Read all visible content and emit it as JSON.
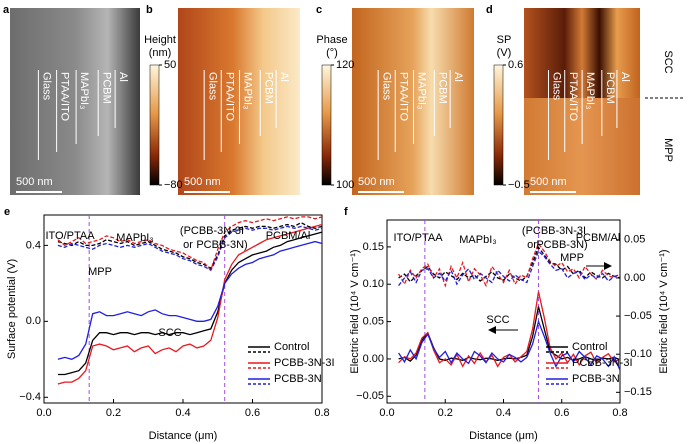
{
  "panels": [
    {
      "letter": "a",
      "layers": [
        "Glass",
        "PTAA/ITO",
        "MAPbI₃",
        "PCBM",
        "Al"
      ],
      "scale": "500 nm"
    },
    {
      "letter": "b",
      "layers": [
        "Glass",
        "PTAA/ITO",
        "MAPbI₃",
        "PCBM",
        "Al"
      ],
      "scale": "500 nm",
      "colorbar": {
        "title_lines": [
          "Height",
          "(nm)"
        ],
        "ticks": [
          50,
          {
            "value": -80,
            "label": "−80"
          }
        ]
      }
    },
    {
      "letter": "c",
      "layers": [
        "Glass",
        "PTAA/ITO",
        "MAPbI₃",
        "PCBM",
        "Al"
      ],
      "scale": "500 nm",
      "colorbar": {
        "title_lines": [
          "Phase",
          "(°)"
        ],
        "ticks": [
          120,
          100
        ]
      }
    },
    {
      "letter": "d",
      "layers": [
        "Glass",
        "PTAA/ITO",
        "MAPbI₃",
        "PCBM",
        "Al"
      ],
      "scale": "500 nm",
      "colorbar": {
        "title_lines": [
          "SP",
          "(V)"
        ],
        "ticks": [
          0.6,
          {
            "value": -0.5,
            "label": "−0.5"
          }
        ]
      },
      "states": [
        "SCC",
        "MPP"
      ]
    }
  ],
  "chart_data": [
    {
      "type": "line",
      "letter": "e",
      "xlabel": "Distance (μm)",
      "ylabel": "Surface potential (V)",
      "xlim": [
        0,
        0.8
      ],
      "xticks": [
        {
          "value": 0,
          "label": "0.0"
        },
        0.2,
        0.4,
        0.6,
        0.8
      ],
      "ylim": [
        -0.43,
        0.56
      ],
      "yticks": [
        {
          "value": -0.4,
          "label": "−0.4"
        },
        {
          "value": 0,
          "label": "0.0"
        },
        0.4
      ],
      "vlines": [
        0.13,
        0.52
      ],
      "annotations": [
        "ITO/PTAA",
        "MAPbI₃",
        "(PCBB-3N-3I",
        "or",
        "PCBB-3N)",
        "PCBM/Al",
        "MPP",
        "SCC"
      ],
      "x": [
        0.04,
        0.06,
        0.08,
        0.1,
        0.12,
        0.14,
        0.16,
        0.18,
        0.2,
        0.22,
        0.24,
        0.26,
        0.28,
        0.3,
        0.32,
        0.34,
        0.36,
        0.38,
        0.4,
        0.42,
        0.44,
        0.46,
        0.48,
        0.5,
        0.52,
        0.54,
        0.56,
        0.58,
        0.6,
        0.62,
        0.64,
        0.66,
        0.68,
        0.7,
        0.72,
        0.74,
        0.76,
        0.78,
        0.8
      ],
      "series": [
        {
          "name": "Control",
          "color": "#000000",
          "values": [
            -0.28,
            -0.28,
            -0.27,
            -0.26,
            -0.22,
            -0.1,
            -0.06,
            -0.06,
            -0.07,
            -0.06,
            -0.06,
            -0.07,
            -0.06,
            -0.06,
            -0.07,
            -0.06,
            -0.07,
            -0.06,
            -0.06,
            -0.07,
            -0.06,
            -0.05,
            -0.04,
            0.05,
            0.2,
            0.27,
            0.31,
            0.33,
            0.35,
            0.36,
            0.37,
            0.39,
            0.4,
            0.42,
            0.43,
            0.44,
            0.45,
            0.46,
            0.47
          ]
        },
        {
          "name": "PCBB-3N-3I",
          "color": "#e8191f",
          "values": [
            -0.33,
            -0.32,
            -0.32,
            -0.3,
            -0.26,
            -0.13,
            -0.12,
            -0.13,
            -0.15,
            -0.14,
            -0.13,
            -0.16,
            -0.14,
            -0.13,
            -0.17,
            -0.15,
            -0.14,
            -0.16,
            -0.13,
            -0.12,
            -0.14,
            -0.13,
            -0.1,
            0.02,
            0.22,
            0.3,
            0.35,
            0.37,
            0.39,
            0.41,
            0.43,
            0.44,
            0.45,
            0.46,
            0.47,
            0.48,
            0.49,
            0.5,
            0.51
          ]
        },
        {
          "name": "PCBB-3N",
          "color": "#1f1fe0",
          "values": [
            -0.2,
            -0.19,
            -0.2,
            -0.18,
            -0.12,
            0.04,
            0.05,
            0.03,
            0.03,
            0.04,
            0.05,
            0.04,
            0.03,
            0.05,
            0.06,
            0.04,
            0.03,
            0.03,
            0.02,
            0.01,
            0.0,
            0.0,
            0.01,
            0.08,
            0.2,
            0.25,
            0.28,
            0.3,
            0.31,
            0.33,
            0.34,
            0.35,
            0.37,
            0.38,
            0.39,
            0.4,
            0.41,
            0.42,
            0.41
          ]
        },
        {
          "color": "#000000",
          "dashed": true,
          "values": [
            0.42,
            0.41,
            0.4,
            0.42,
            0.4,
            0.4,
            0.41,
            0.43,
            0.42,
            0.41,
            0.42,
            0.4,
            0.41,
            0.42,
            0.4,
            0.38,
            0.37,
            0.36,
            0.34,
            0.33,
            0.31,
            0.3,
            0.28,
            0.35,
            0.45,
            0.48,
            0.49,
            0.5,
            0.49,
            0.5,
            0.5,
            0.49,
            0.5,
            0.51,
            0.5,
            0.52,
            0.5,
            0.49,
            0.5
          ]
        },
        {
          "color": "#e8191f",
          "dashed": true,
          "values": [
            0.43,
            0.4,
            0.42,
            0.44,
            0.41,
            0.42,
            0.43,
            0.45,
            0.44,
            0.42,
            0.43,
            0.41,
            0.42,
            0.43,
            0.41,
            0.4,
            0.38,
            0.37,
            0.36,
            0.34,
            0.32,
            0.31,
            0.27,
            0.38,
            0.47,
            0.5,
            0.52,
            0.53,
            0.52,
            0.53,
            0.54,
            0.53,
            0.54,
            0.55,
            0.54,
            0.55,
            0.55,
            0.54,
            0.55
          ]
        },
        {
          "color": "#1f1fe0",
          "dashed": true,
          "values": [
            0.4,
            0.39,
            0.41,
            0.4,
            0.39,
            0.38,
            0.4,
            0.41,
            0.4,
            0.39,
            0.4,
            0.39,
            0.4,
            0.41,
            0.39,
            0.37,
            0.36,
            0.35,
            0.33,
            0.32,
            0.3,
            0.29,
            0.27,
            0.34,
            0.44,
            0.47,
            0.48,
            0.49,
            0.48,
            0.49,
            0.49,
            0.48,
            0.49,
            0.5,
            0.49,
            0.5,
            0.49,
            0.48,
            0.49
          ]
        }
      ]
    },
    {
      "type": "line",
      "letter": "f",
      "xlabel": "Distance (μm)",
      "ylabel": "Electric field (10⁴ V cm⁻¹)",
      "y2label": "Electric field (10⁴ V cm⁻¹)",
      "xlim": [
        0,
        0.8
      ],
      "xticks": [
        {
          "value": 0,
          "label": "0.0"
        },
        0.2,
        0.4,
        0.6,
        0.8
      ],
      "ylim": [
        -0.059,
        0.186
      ],
      "yticks": [
        {
          "value": -0.05,
          "label": "−0.05"
        },
        {
          "value": 0,
          "label": "0.00"
        },
        {
          "value": 0.05,
          "label": "0.05"
        },
        {
          "value": 0.1,
          "label": "0.10"
        },
        {
          "value": 0.15,
          "label": "0.15"
        }
      ],
      "y2lim": [
        -0.164,
        0.076
      ],
      "y2ticks": [
        {
          "value": -0.15,
          "label": "−0.15"
        },
        {
          "value": -0.1,
          "label": "−0.10"
        },
        {
          "value": -0.05,
          "label": "−0.05"
        },
        {
          "value": 0,
          "label": "0.00"
        },
        {
          "value": 0.05,
          "label": "0.05"
        }
      ],
      "vlines": [
        0.13,
        0.52
      ],
      "annotations": [
        "ITO/PTAA",
        "MAPbI₃",
        "(PCBB-3N-3I",
        "or",
        "PCBB-3N)",
        "PCBM/Al",
        "MPP",
        "SCC"
      ],
      "x": [
        0.04,
        0.06,
        0.08,
        0.1,
        0.12,
        0.14,
        0.16,
        0.18,
        0.2,
        0.22,
        0.24,
        0.26,
        0.28,
        0.3,
        0.32,
        0.34,
        0.36,
        0.38,
        0.4,
        0.42,
        0.44,
        0.46,
        0.48,
        0.5,
        0.52,
        0.54,
        0.56,
        0.58,
        0.6,
        0.62,
        0.64,
        0.66,
        0.68,
        0.7,
        0.72,
        0.74,
        0.76,
        0.78,
        0.8
      ],
      "series": [
        {
          "name": "Control",
          "color": "#000000",
          "values": [
            0.0,
            0.002,
            -0.003,
            0.005,
            0.025,
            0.035,
            0.015,
            0.0,
            -0.002,
            0.001,
            0.0,
            -0.002,
            0.002,
            0.0,
            -0.001,
            0.001,
            0.0,
            -0.002,
            0.0,
            0.001,
            0.0,
            0.002,
            0.005,
            0.03,
            0.07,
            0.04,
            0.01,
            0.005,
            0.0,
            0.002,
            -0.002,
            0.0,
            0.003,
            0.0,
            -0.002,
            0.001,
            0.0,
            0.002,
            -0.001
          ]
        },
        {
          "name": "PCBB-3N-3I",
          "color": "#e8191f",
          "values": [
            -0.005,
            0.003,
            0.0,
            0.008,
            0.028,
            0.035,
            0.012,
            -0.005,
            0.0,
            -0.008,
            0.006,
            -0.01,
            0.004,
            -0.006,
            0.008,
            -0.004,
            0.005,
            -0.01,
            0.002,
            0.006,
            -0.004,
            0.003,
            0.01,
            0.04,
            0.09,
            0.055,
            0.015,
            0.0,
            0.008,
            -0.005,
            0.006,
            -0.008,
            0.004,
            0.009,
            -0.006,
            0.002,
            0.007,
            -0.004,
            0.0
          ]
        },
        {
          "name": "PCBB-3N",
          "color": "#1f1fe0",
          "values": [
            0.008,
            -0.004,
            0.012,
            0.0,
            0.022,
            0.033,
            0.014,
            0.002,
            0.01,
            -0.005,
            0.008,
            0.0,
            -0.006,
            0.01,
            0.004,
            -0.005,
            0.008,
            0.0,
            -0.004,
            0.006,
            0.002,
            -0.004,
            0.002,
            0.02,
            0.05,
            0.03,
            0.008,
            -0.01,
            0.004,
            0.008,
            -0.004,
            0.01,
            0.002,
            -0.008,
            0.004,
            0.0,
            -0.01,
            0.003,
            -0.015
          ]
        },
        {
          "color": "#000000",
          "dashed": true,
          "axis": "y2",
          "values": [
            0.0,
            0.005,
            -0.005,
            0.003,
            0.01,
            0.015,
            0.005,
            0.0,
            0.008,
            0.003,
            -0.002,
            0.006,
            0.0,
            0.004,
            -0.004,
            0.002,
            0.008,
            0.0,
            -0.003,
            0.005,
            0.0,
            -0.004,
            0.002,
            0.02,
            0.04,
            0.03,
            0.02,
            0.018,
            0.01,
            0.015,
            0.005,
            0.01,
            0.0,
            0.008,
            0.003,
            0.0,
            0.006,
            0.002,
            0.0
          ]
        },
        {
          "color": "#e8191f",
          "dashed": true,
          "axis": "y2",
          "values": [
            0.005,
            -0.008,
            0.01,
            0.0,
            0.012,
            0.018,
            0.0,
            0.012,
            -0.01,
            0.015,
            0.0,
            0.02,
            -0.005,
            0.012,
            0.004,
            -0.01,
            0.015,
            0.005,
            -0.006,
            0.01,
            -0.008,
            0.004,
            0.0,
            0.025,
            0.045,
            0.035,
            0.022,
            0.015,
            0.02,
            0.008,
            0.012,
            0.0,
            0.015,
            0.005,
            -0.002,
            0.01,
            0.003,
            0.0,
            0.006
          ]
        },
        {
          "color": "#1f1fe0",
          "dashed": true,
          "axis": "y2",
          "values": [
            -0.01,
            0.0,
            0.008,
            -0.006,
            0.01,
            0.012,
            0.0,
            0.006,
            -0.004,
            0.01,
            -0.008,
            0.004,
            0.012,
            -0.002,
            0.006,
            0.0,
            -0.006,
            0.01,
            0.002,
            -0.004,
            0.004,
            -0.002,
            -0.006,
            0.015,
            0.035,
            0.028,
            0.018,
            0.01,
            0.012,
            0.0,
            0.006,
            0.008,
            -0.002,
            0.004,
            0.0,
            0.006,
            -0.004,
            0.002,
            0.004
          ]
        }
      ]
    }
  ]
}
